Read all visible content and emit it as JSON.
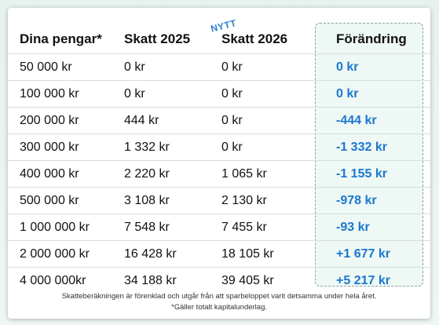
{
  "headers": {
    "col1": "Dina pengar*",
    "col2": "Skatt 2025",
    "col3": "Skatt 2026",
    "col4": "Förändring"
  },
  "badge": "NYTT",
  "rows": [
    {
      "money": "50 000 kr",
      "tax2025": "0 kr",
      "tax2026": "0 kr",
      "change": "0 kr"
    },
    {
      "money": "100 000 kr",
      "tax2025": "0 kr",
      "tax2026": "0 kr",
      "change": "0 kr"
    },
    {
      "money": "200 000 kr",
      "tax2025": "444 kr",
      "tax2026": "0 kr",
      "change": "-444 kr"
    },
    {
      "money": "300 000 kr",
      "tax2025": "1 332 kr",
      "tax2026": "0 kr",
      "change": "-1 332 kr"
    },
    {
      "money": "400 000 kr",
      "tax2025": "2 220 kr",
      "tax2026": "1 065 kr",
      "change": "-1 155 kr"
    },
    {
      "money": "500 000 kr",
      "tax2025": "3 108 kr",
      "tax2026": "2 130 kr",
      "change": "-978 kr"
    },
    {
      "money": "1 000 000 kr",
      "tax2025": "7 548 kr",
      "tax2026": "7 455 kr",
      "change": "-93 kr"
    },
    {
      "money": "2 000 000 kr",
      "tax2025": "16 428 kr",
      "tax2026": "18 105 kr",
      "change": "+1 677 kr"
    },
    {
      "money": "4 000 000kr",
      "tax2025": "34 188 kr",
      "tax2026": "39 405 kr",
      "change": "+5 217 kr"
    }
  ],
  "footnotes": {
    "line1": "Skatteberäkningen är förenklad och utgår från att sparbeloppet varit detsamma under hela året.",
    "line2": "*Gäller totalt kapitalunderlag."
  },
  "colors": {
    "change_text": "#1a77cf",
    "highlight_bg": "#eef8f5",
    "badge_text": "#2a7fd4"
  }
}
